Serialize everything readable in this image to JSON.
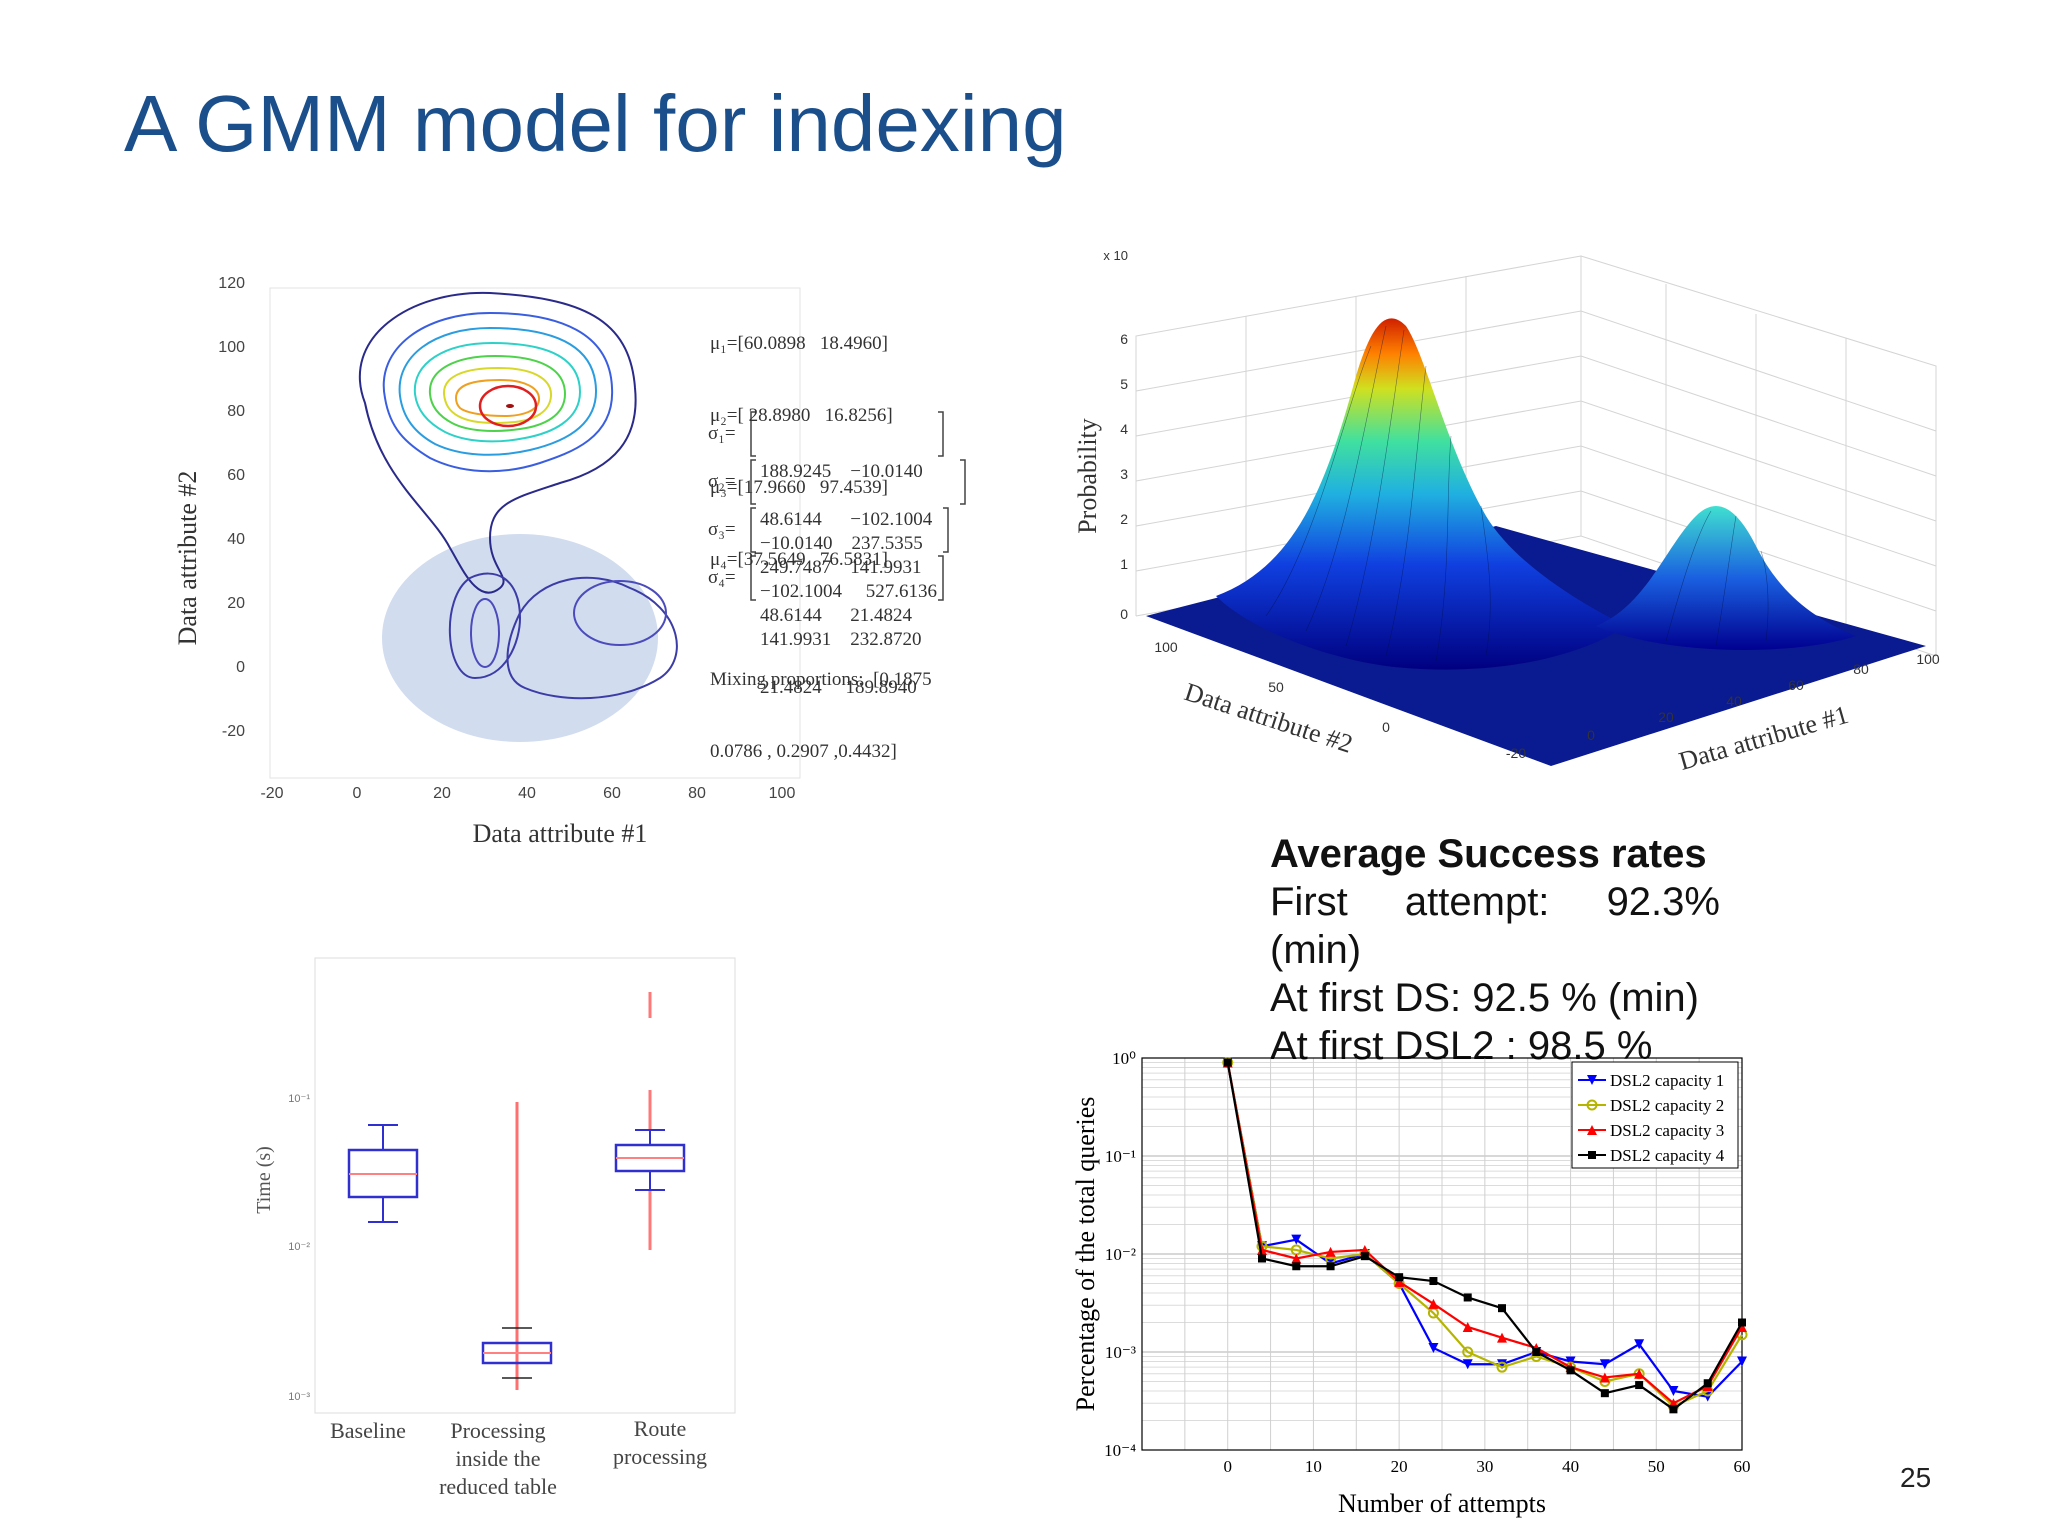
{
  "title": "A GMM model for indexing",
  "slide_number": "25",
  "summary": {
    "heading": "Average Success rates",
    "line1_a": "First",
    "line1_b": "attempt:",
    "line1_c": "92.3%",
    "line2": "(min)",
    "line3": "At first DS: 92.5 % (min)",
    "line4": "At first DSL2 : 98.5 %"
  },
  "contour": {
    "xlabel": "Data attribute #1",
    "ylabel": "Data attribute #2",
    "xticks": [
      "-20",
      "0",
      "20",
      "40",
      "60",
      "80",
      "100"
    ],
    "yticks": [
      "120",
      "100",
      "80",
      "60",
      "40",
      "20",
      "0",
      "-20"
    ],
    "mu1": "μ₁=[60.0898   18.4960]",
    "mu2": "μ₂=[ 28.8980   16.8256]",
    "mu3": "μ₃=[17.9660   97.4539]",
    "mu4": "μ₄=[37.5649   76.5831]",
    "s1a": "188.9245    −10.0140",
    "s1b": "−10.0140    237.5355",
    "s2a": "48.6144      −102.1004",
    "s2b": "−102.1004     527.6136",
    "s3a": "249.7487    141.9931",
    "s3b": "141.9931    232.8720",
    "s4a": "48.6144      21.4824",
    "s4b": "21.4824     189.8940",
    "sig1": "σ₁=",
    "sig2": "σ₂=",
    "sig3": "σ₃=",
    "sig4": "σ₄=",
    "mix1": "Mixing proportions:  [0.1875",
    "mix2": "0.0786 , 0.2907 ,0.4432]"
  },
  "surface": {
    "zlabel": "Probability",
    "zscale": "x 10",
    "zticks": [
      "6",
      "5",
      "4",
      "3",
      "2",
      "1",
      "0"
    ],
    "xlabel": "Data attribute #1",
    "ylabel": "Data attribute #2",
    "xticks": [
      "-20",
      "0",
      "20",
      "40",
      "60",
      "80",
      "100"
    ],
    "yticks": [
      "100",
      "50",
      "0"
    ]
  },
  "boxplot": {
    "ylabel": "Time (s)",
    "yticks": [
      "10⁻¹",
      "10⁻²",
      "10⁻³"
    ],
    "categories": [
      "Baseline",
      "Processing inside the reduced table",
      "Route processing"
    ],
    "cat_lines": [
      [
        "Baseline"
      ],
      [
        "Processing",
        "inside  the",
        "reduced table"
      ],
      [
        "Route",
        "processing"
      ]
    ]
  },
  "colors": {
    "title": "#1b4f8c",
    "series1": "#0000ff",
    "series2": "#b5b500",
    "series3": "#ff0000",
    "series4": "#000000",
    "box": "#3030d0",
    "outlier": "#ff3030",
    "highlight": "#c9d6ec"
  },
  "chart_data": {
    "type": "line",
    "xlabel": "Number of attempts",
    "ylabel": "Percentage of the total queries",
    "xlim": [
      -10,
      60
    ],
    "ylim": [
      0.0001,
      1
    ],
    "yscale": "log",
    "xticks": [
      "0",
      "10",
      "20",
      "30",
      "40",
      "50",
      "60"
    ],
    "yticks": [
      "10⁰",
      "10⁻¹",
      "10⁻²",
      "10⁻³",
      "10⁻⁴"
    ],
    "grid": true,
    "legend_position": "top-right",
    "x": [
      0,
      4,
      8,
      12,
      16,
      20,
      24,
      28,
      32,
      36,
      40,
      44,
      48,
      52,
      56,
      60
    ],
    "series": [
      {
        "name": "DSL2 capacity 1",
        "marker": "triangle-down",
        "values": [
          0.9,
          0.012,
          0.014,
          0.008,
          0.01,
          0.005,
          0.0011,
          0.00075,
          0.00075,
          0.001,
          0.0008,
          0.00075,
          0.0012,
          0.0004,
          0.00035,
          0.0008
        ]
      },
      {
        "name": "DSL2 capacity 2",
        "marker": "circle",
        "values": [
          0.9,
          0.012,
          0.011,
          0.009,
          0.01,
          0.005,
          0.0025,
          0.001,
          0.0007,
          0.0009,
          0.0007,
          0.0005,
          0.0006,
          0.00028,
          0.0004,
          0.0015
        ]
      },
      {
        "name": "DSL2 capacity 3",
        "marker": "triangle-up",
        "values": [
          0.9,
          0.011,
          0.009,
          0.0105,
          0.011,
          0.0052,
          0.0031,
          0.0018,
          0.0014,
          0.0011,
          0.0007,
          0.00055,
          0.0006,
          0.0003,
          0.00045,
          0.0018
        ]
      },
      {
        "name": "DSL2 capacity 4",
        "marker": "square",
        "values": [
          0.9,
          0.009,
          0.0075,
          0.0075,
          0.0095,
          0.0058,
          0.0053,
          0.0036,
          0.0028,
          0.001,
          0.00065,
          0.00038,
          0.00046,
          0.00026,
          0.00048,
          0.002
        ]
      }
    ]
  }
}
